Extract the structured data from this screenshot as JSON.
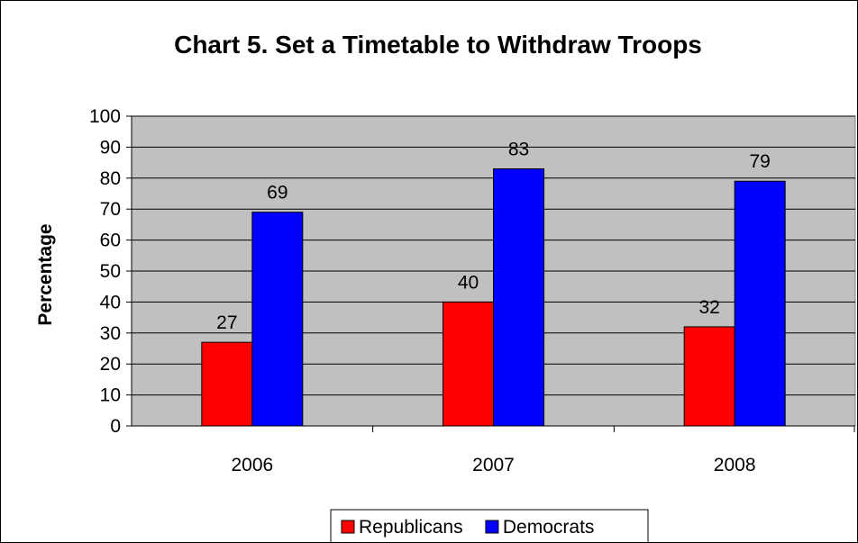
{
  "chart_data": {
    "type": "bar",
    "title": "Chart 5. Set a Timetable to Withdraw Troops",
    "xlabel": "",
    "ylabel": "Percentage",
    "ylim": [
      0,
      100
    ],
    "ytick_step": 10,
    "grid": true,
    "legend_position": "bottom",
    "categories": [
      "2006",
      "2007",
      "2008"
    ],
    "series": [
      {
        "name": "Republicans",
        "color": "#ff0000",
        "values": [
          27,
          40,
          32
        ]
      },
      {
        "name": "Democrats",
        "color": "#0000ff",
        "values": [
          69,
          83,
          79
        ]
      }
    ],
    "plot_background": "#c0c0c0"
  }
}
